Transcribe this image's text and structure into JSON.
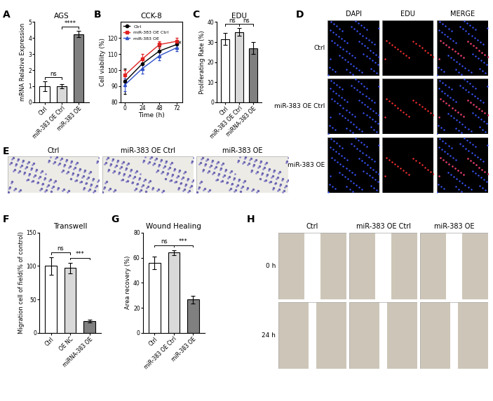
{
  "chart_data": [
    {
      "panel": "A",
      "type": "bar",
      "title": "AGS",
      "y_label": "mRNA Relative Expression",
      "categories": [
        "Ctrl",
        "miR-383 OE Ctrl",
        "miR-383 OE"
      ],
      "values": [
        1.0,
        1.0,
        4.25
      ],
      "errors": [
        0.3,
        0.15,
        0.2
      ],
      "colors": [
        "#ffffff",
        "#d9d9d9",
        "#808080"
      ],
      "ylim": [
        0,
        5
      ],
      "yticks": [
        0,
        1,
        2,
        3,
        4,
        5
      ],
      "significance": [
        {
          "text": "ns",
          "between": [
            0,
            1
          ]
        },
        {
          "text": "****",
          "between": [
            1,
            2
          ]
        }
      ]
    },
    {
      "panel": "B",
      "type": "line",
      "title": "CCK-8",
      "x_label": "Time (h)",
      "y_label": "Cell viability (%)",
      "x": [
        0,
        24,
        48,
        72
      ],
      "xlim": [
        -6,
        80
      ],
      "xticks": [
        0,
        24,
        48,
        72
      ],
      "ylim": [
        80,
        130
      ],
      "yticks": [
        80,
        90,
        100,
        110,
        120
      ],
      "legend": "upper left",
      "series": [
        {
          "name": "Ctrl",
          "color": "#000000",
          "marker": "o",
          "values": [
            93,
            104,
            112,
            116
          ],
          "errors": [
            8,
            3,
            3,
            2
          ]
        },
        {
          "name": "miR-383 OE Ctrl",
          "color": "#e02020",
          "marker": "s",
          "values": [
            97,
            107,
            116,
            118
          ],
          "errors": [
            3,
            3,
            2,
            2
          ]
        },
        {
          "name": "miR-383 OE",
          "color": "#3050c8",
          "marker": "^",
          "values": [
            91,
            101,
            109,
            114
          ],
          "errors": [
            4,
            3,
            3,
            2
          ]
        }
      ],
      "annotations": [
        {
          "text": "*",
          "x": 76,
          "y": 116
        }
      ]
    },
    {
      "panel": "C",
      "type": "bar",
      "title": "EDU",
      "y_label": "Proliferating Rate (%)",
      "categories": [
        "Ctrl",
        "miR-383 OE Ctrl",
        "miRNA-383 OE"
      ],
      "values": [
        31.5,
        35,
        27
      ],
      "errors": [
        3,
        2,
        3
      ],
      "colors": [
        "#ffffff",
        "#d9d9d9",
        "#808080"
      ],
      "ylim": [
        0,
        40
      ],
      "yticks": [
        0,
        10,
        20,
        30,
        40
      ],
      "significance": [
        {
          "text": "ns",
          "between": [
            0,
            1
          ]
        },
        {
          "text": "ns",
          "between": [
            1,
            2
          ]
        }
      ]
    },
    {
      "panel": "F",
      "type": "bar",
      "title": "Transwell",
      "y_label": "Migration cell of field(% of control)",
      "categories": [
        "Ctrl",
        "OE NC",
        "miRNA-383 OE"
      ],
      "values": [
        100,
        97,
        18
      ],
      "errors": [
        13,
        8,
        2
      ],
      "colors": [
        "#ffffff",
        "#d9d9d9",
        "#808080"
      ],
      "ylim": [
        0,
        150
      ],
      "yticks": [
        0,
        50,
        100,
        150
      ],
      "significance": [
        {
          "text": "ns",
          "between": [
            0,
            1
          ]
        },
        {
          "text": "***",
          "between": [
            1,
            2
          ]
        }
      ]
    },
    {
      "panel": "G",
      "type": "bar",
      "title": "Wound Healing",
      "y_label": "Area recovery (%)",
      "categories": [
        "Ctrl",
        "miR-383 OE Ctrl",
        "miR-383 OE"
      ],
      "values": [
        56,
        64,
        26.5
      ],
      "errors": [
        5,
        2,
        3
      ],
      "colors": [
        "#ffffff",
        "#d9d9d9",
        "#808080"
      ],
      "ylim": [
        0,
        80
      ],
      "yticks": [
        0,
        20,
        40,
        60,
        80
      ],
      "significance": [
        {
          "text": "ns",
          "between": [
            0,
            1
          ]
        },
        {
          "text": "***",
          "between": [
            1,
            2
          ]
        }
      ]
    }
  ],
  "image_panels": [
    {
      "panel": "D",
      "type": "fluorescence",
      "columns": [
        "DAPI",
        "EDU",
        "MERGE"
      ],
      "rows": [
        "Ctrl",
        "miR-383 OE Ctrl",
        "miR-383 OE"
      ]
    },
    {
      "panel": "E",
      "type": "transwell",
      "columns": [
        "Ctrl",
        "miR-383 OE Ctrl",
        "miR-383 OE"
      ]
    },
    {
      "panel": "H",
      "type": "wound_healing",
      "columns": [
        "Ctrl",
        "miR-383 OE Ctrl",
        "miR-383 OE"
      ],
      "rows": [
        "0 h",
        "24 h"
      ]
    }
  ]
}
